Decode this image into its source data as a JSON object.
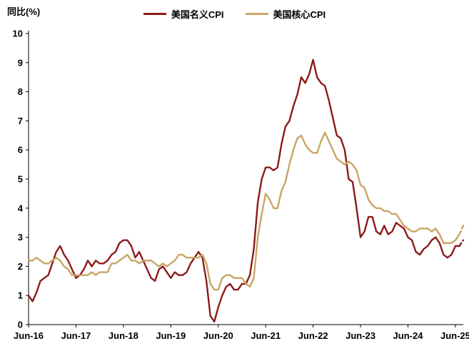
{
  "title": "同比(%)",
  "chart_data": {
    "type": "line",
    "title": "同比(%)",
    "ylabel": "同比(%)",
    "xlabel": "",
    "ylim": [
      0,
      10
    ],
    "ytick_step": 1,
    "grid": false,
    "legend_position": "top-center",
    "x_start_label": "Jun-16",
    "x_tick_labels": [
      "Jun-16",
      "Jun-17",
      "Jun-18",
      "Jun-19",
      "Jun-20",
      "Jun-21",
      "Jun-22",
      "Jun-23",
      "Jun-24",
      "Jun-25"
    ],
    "x_tick_indices": [
      0,
      12,
      24,
      36,
      48,
      60,
      72,
      84,
      96,
      108
    ],
    "x_frequency": "monthly",
    "series": [
      {
        "name": "美国名义CPI",
        "color": "#8C1B1A",
        "dashed_from_index": 109,
        "values": [
          1.0,
          0.8,
          1.1,
          1.5,
          1.6,
          1.7,
          2.1,
          2.5,
          2.7,
          2.4,
          2.2,
          1.9,
          1.6,
          1.7,
          1.9,
          2.2,
          2.0,
          2.2,
          2.1,
          2.1,
          2.2,
          2.4,
          2.5,
          2.8,
          2.9,
          2.9,
          2.7,
          2.3,
          2.5,
          2.2,
          1.9,
          1.6,
          1.5,
          1.9,
          2.0,
          1.8,
          1.6,
          1.8,
          1.7,
          1.7,
          1.8,
          2.1,
          2.3,
          2.5,
          2.3,
          1.5,
          0.3,
          0.1,
          0.6,
          1.0,
          1.3,
          1.4,
          1.2,
          1.2,
          1.4,
          1.4,
          1.7,
          2.6,
          4.2,
          5.0,
          5.4,
          5.4,
          5.3,
          5.4,
          6.2,
          6.8,
          7.0,
          7.5,
          7.9,
          8.5,
          8.3,
          8.6,
          9.1,
          8.5,
          8.3,
          8.2,
          7.7,
          7.1,
          6.5,
          6.4,
          6.0,
          5.0,
          4.9,
          4.0,
          3.0,
          3.2,
          3.7,
          3.7,
          3.2,
          3.1,
          3.4,
          3.1,
          3.2,
          3.5,
          3.4,
          3.3,
          3.0,
          2.9,
          2.5,
          2.4,
          2.6,
          2.7,
          2.9,
          3.0,
          2.8,
          2.4,
          2.3,
          2.4,
          2.7,
          2.7,
          2.9
        ]
      },
      {
        "name": "美国核心CPI",
        "color": "#C9A567",
        "dashed_from_index": 109,
        "values": [
          2.2,
          2.2,
          2.3,
          2.2,
          2.1,
          2.1,
          2.2,
          2.3,
          2.2,
          2.0,
          1.9,
          1.7,
          1.7,
          1.7,
          1.7,
          1.7,
          1.8,
          1.7,
          1.8,
          1.8,
          1.8,
          2.1,
          2.1,
          2.2,
          2.3,
          2.4,
          2.2,
          2.2,
          2.1,
          2.2,
          2.2,
          2.2,
          2.1,
          2.0,
          2.1,
          2.0,
          2.1,
          2.2,
          2.4,
          2.4,
          2.3,
          2.3,
          2.3,
          2.3,
          2.4,
          2.1,
          1.4,
          1.2,
          1.2,
          1.6,
          1.7,
          1.7,
          1.6,
          1.6,
          1.6,
          1.4,
          1.3,
          1.6,
          3.0,
          3.8,
          4.5,
          4.3,
          4.0,
          4.0,
          4.6,
          4.9,
          5.5,
          6.0,
          6.4,
          6.5,
          6.2,
          6.0,
          5.9,
          5.9,
          6.3,
          6.6,
          6.3,
          6.0,
          5.7,
          5.6,
          5.5,
          5.6,
          5.5,
          5.3,
          4.8,
          4.7,
          4.3,
          4.1,
          4.0,
          4.0,
          3.9,
          3.9,
          3.8,
          3.8,
          3.6,
          3.4,
          3.3,
          3.2,
          3.2,
          3.3,
          3.3,
          3.3,
          3.2,
          3.3,
          3.1,
          2.8,
          2.8,
          2.8,
          2.9,
          3.1,
          3.4
        ]
      }
    ]
  }
}
